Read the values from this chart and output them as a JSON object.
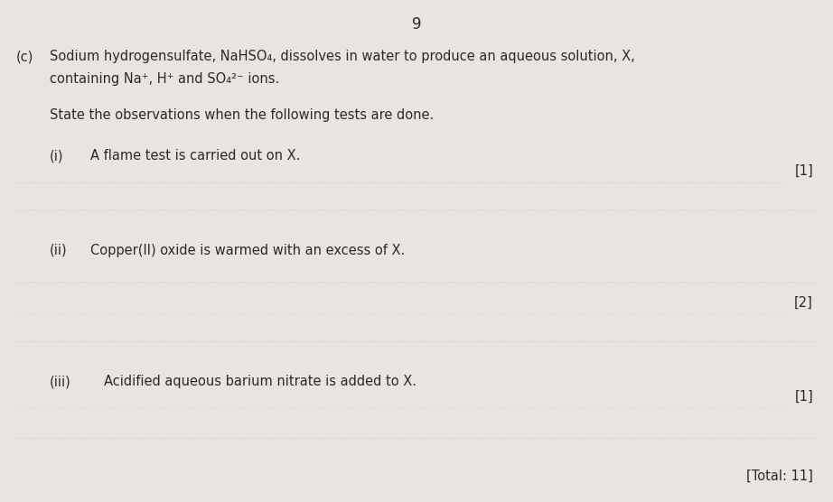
{
  "background_color": "#e8e5e0",
  "page_number": "9",
  "text_color": "#2a2a2a",
  "section_label": "(c)",
  "intro_line1": "Sodium hydrogensulfate, NaHSO₄, dissolves in water to produce an aqueous solution, X,",
  "intro_line2": "containing Na⁺, H⁺ and SO₄²⁻ ions.",
  "state_text": "State the observations when the following tests are done.",
  "q_i_label": "(i)",
  "q_i_text": "A flame test is carried out on X.",
  "q_i_mark": "[1]",
  "q_ii_label": "(ii)",
  "q_ii_text": "Copper(II) oxide is warmed with an excess of X.",
  "q_ii_mark": "[2]",
  "q_iii_label": "(iii)",
  "q_iii_text": "Acidified aqueous barium nitrate is added to X.",
  "q_iii_mark": "[1]",
  "total_text": "[Total: 11]",
  "dotted_line_color": "#999999",
  "main_fontsize": 10.5,
  "bold_fontsize": 10.5
}
